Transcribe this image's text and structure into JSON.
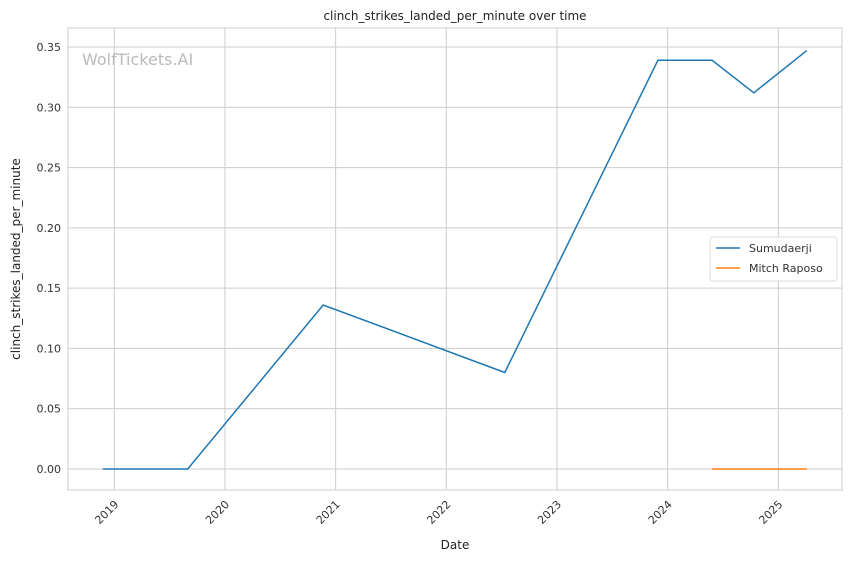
{
  "chart_data": {
    "type": "line",
    "title": "clinch_strikes_landed_per_minute over time",
    "xlabel": "Date",
    "ylabel": "clinch_strikes_landed_per_minute",
    "watermark": "WolfTickets.AI",
    "xlim": [
      "2018-08-01",
      "2025-07-20"
    ],
    "ylim": [
      -0.018,
      0.365
    ],
    "x_ticks": [
      "2019",
      "2020",
      "2021",
      "2022",
      "2023",
      "2024",
      "2025"
    ],
    "y_ticks": [
      "0.00",
      "0.05",
      "0.10",
      "0.15",
      "0.20",
      "0.25",
      "0.30",
      "0.35"
    ],
    "grid": true,
    "legend_position": "center-right",
    "series": [
      {
        "name": "Sumudaerji",
        "color": "#1f77b4",
        "x": [
          "2018-11-24",
          "2019-08-31",
          "2020-11-21",
          "2022-07-13",
          "2023-11-30",
          "2024-05-27",
          "2024-10-12",
          "2025-04-05"
        ],
        "y": [
          0.0,
          0.0,
          0.136,
          0.08,
          0.339,
          0.339,
          0.312,
          0.347
        ]
      },
      {
        "name": "Mitch Raposo",
        "color": "#ff7f0e",
        "x": [
          "2024-05-27",
          "2025-04-05"
        ],
        "y": [
          0.0,
          0.0
        ]
      }
    ]
  }
}
